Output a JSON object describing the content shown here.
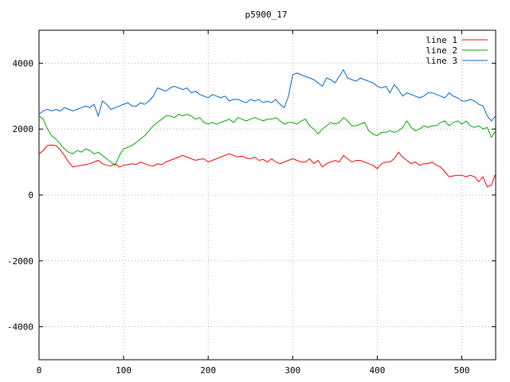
{
  "chart_data": {
    "type": "line",
    "title": "p5900_17",
    "xlabel": "",
    "ylabel": "",
    "xlim": [
      0,
      540
    ],
    "ylim": [
      -5000,
      5000
    ],
    "x_ticks": [
      0,
      100,
      200,
      300,
      400,
      500
    ],
    "y_ticks": [
      -4000,
      -2000,
      0,
      2000,
      4000
    ],
    "grid": true,
    "legend_position": "top-right",
    "series": [
      {
        "name": "line 1",
        "color": "#ff0000",
        "x": [
          0,
          5,
          10,
          15,
          20,
          25,
          30,
          35,
          40,
          45,
          50,
          55,
          60,
          65,
          70,
          75,
          80,
          85,
          90,
          95,
          100,
          105,
          110,
          115,
          120,
          125,
          130,
          135,
          140,
          145,
          150,
          155,
          160,
          165,
          170,
          175,
          180,
          185,
          190,
          195,
          200,
          205,
          210,
          215,
          220,
          225,
          230,
          235,
          240,
          245,
          250,
          255,
          260,
          265,
          270,
          275,
          280,
          285,
          290,
          295,
          300,
          305,
          310,
          315,
          320,
          325,
          330,
          335,
          340,
          345,
          350,
          355,
          360,
          365,
          370,
          375,
          380,
          385,
          390,
          395,
          400,
          405,
          410,
          415,
          420,
          425,
          430,
          435,
          440,
          445,
          450,
          455,
          460,
          465,
          470,
          475,
          480,
          485,
          490,
          495,
          500,
          505,
          510,
          515,
          520,
          525,
          530,
          535,
          540
        ],
        "y": [
          1250,
          1350,
          1500,
          1520,
          1500,
          1380,
          1200,
          1000,
          850,
          880,
          900,
          920,
          950,
          1000,
          1050,
          950,
          900,
          880,
          950,
          850,
          900,
          920,
          950,
          930,
          1000,
          950,
          900,
          880,
          950,
          920,
          1000,
          1050,
          1100,
          1150,
          1200,
          1150,
          1100,
          1050,
          1080,
          1100,
          1000,
          1050,
          1100,
          1150,
          1200,
          1250,
          1200,
          1150,
          1180,
          1120,
          1100,
          1150,
          1050,
          1080,
          1000,
          1100,
          1000,
          950,
          1000,
          1050,
          1100,
          1050,
          1000,
          1000,
          1100,
          950,
          1050,
          850,
          950,
          1000,
          1050,
          1000,
          1200,
          1100,
          1000,
          1050,
          1050,
          1000,
          950,
          900,
          800,
          950,
          1000,
          1000,
          1100,
          1300,
          1150,
          1050,
          950,
          1000,
          900,
          950,
          950,
          1000,
          900,
          850,
          700,
          550,
          580,
          600,
          600,
          550,
          600,
          550,
          400,
          550,
          250,
          300,
          650
        ]
      },
      {
        "name": "line 2",
        "color": "#00aa00",
        "x": [
          0,
          5,
          10,
          15,
          20,
          25,
          30,
          35,
          40,
          45,
          50,
          55,
          60,
          65,
          70,
          75,
          80,
          85,
          90,
          95,
          100,
          105,
          110,
          115,
          120,
          125,
          130,
          135,
          140,
          145,
          150,
          155,
          160,
          165,
          170,
          175,
          180,
          185,
          190,
          195,
          200,
          205,
          210,
          215,
          220,
          225,
          230,
          235,
          240,
          245,
          250,
          255,
          260,
          265,
          270,
          275,
          280,
          285,
          290,
          295,
          300,
          305,
          310,
          315,
          320,
          325,
          330,
          335,
          340,
          345,
          350,
          355,
          360,
          365,
          370,
          375,
          380,
          385,
          390,
          395,
          400,
          405,
          410,
          415,
          420,
          425,
          430,
          435,
          440,
          445,
          450,
          455,
          460,
          465,
          470,
          475,
          480,
          485,
          490,
          495,
          500,
          505,
          510,
          515,
          520,
          525,
          530,
          535,
          540
        ],
        "y": [
          2400,
          2300,
          2000,
          1800,
          1700,
          1550,
          1400,
          1300,
          1250,
          1350,
          1300,
          1400,
          1350,
          1250,
          1300,
          1200,
          1100,
          1000,
          900,
          1200,
          1400,
          1450,
          1500,
          1600,
          1700,
          1800,
          1950,
          2100,
          2200,
          2300,
          2400,
          2400,
          2350,
          2450,
          2400,
          2450,
          2400,
          2300,
          2350,
          2200,
          2150,
          2200,
          2150,
          2200,
          2250,
          2300,
          2200,
          2350,
          2300,
          2250,
          2300,
          2350,
          2300,
          2250,
          2300,
          2300,
          2350,
          2250,
          2150,
          2200,
          2200,
          2150,
          2250,
          2300,
          2100,
          2000,
          1850,
          2000,
          2100,
          2200,
          2150,
          2200,
          2350,
          2250,
          2100,
          2100,
          2150,
          2200,
          1950,
          1850,
          1800,
          1900,
          1900,
          1950,
          1900,
          1950,
          2050,
          2250,
          2050,
          1950,
          2000,
          2100,
          2050,
          2100,
          2100,
          2200,
          2250,
          2100,
          2200,
          2250,
          2150,
          2250,
          2100,
          2050,
          2100,
          2000,
          2050,
          1750,
          1950
        ]
      },
      {
        "name": "line 3",
        "color": "#0066cc",
        "x": [
          0,
          5,
          10,
          15,
          20,
          25,
          30,
          35,
          40,
          45,
          50,
          55,
          60,
          65,
          70,
          75,
          80,
          85,
          90,
          95,
          100,
          105,
          110,
          115,
          120,
          125,
          130,
          135,
          140,
          145,
          150,
          155,
          160,
          165,
          170,
          175,
          180,
          185,
          190,
          195,
          200,
          205,
          210,
          215,
          220,
          225,
          230,
          235,
          240,
          245,
          250,
          255,
          260,
          265,
          270,
          275,
          280,
          285,
          290,
          295,
          300,
          305,
          310,
          315,
          320,
          325,
          330,
          335,
          340,
          345,
          350,
          355,
          360,
          365,
          370,
          375,
          380,
          385,
          390,
          395,
          400,
          405,
          410,
          415,
          420,
          425,
          430,
          435,
          440,
          445,
          450,
          455,
          460,
          465,
          470,
          475,
          480,
          485,
          490,
          495,
          500,
          505,
          510,
          515,
          520,
          525,
          530,
          535,
          540
        ],
        "y": [
          2450,
          2550,
          2600,
          2550,
          2600,
          2550,
          2650,
          2600,
          2550,
          2600,
          2650,
          2700,
          2650,
          2750,
          2400,
          2850,
          2750,
          2600,
          2650,
          2700,
          2750,
          2800,
          2700,
          2700,
          2800,
          2750,
          2850,
          3000,
          3250,
          3200,
          3150,
          3250,
          3300,
          3250,
          3200,
          3250,
          3100,
          3150,
          3050,
          3000,
          2950,
          3050,
          3000,
          2950,
          3000,
          2850,
          2900,
          2900,
          2850,
          2800,
          2900,
          2850,
          2900,
          2800,
          2850,
          2800,
          2900,
          2750,
          2650,
          3000,
          3650,
          3700,
          3650,
          3600,
          3550,
          3500,
          3400,
          3300,
          3550,
          3500,
          3400,
          3600,
          3800,
          3550,
          3500,
          3450,
          3550,
          3500,
          3450,
          3400,
          3300,
          3250,
          3300,
          3100,
          3350,
          3200,
          3000,
          3100,
          3050,
          3000,
          2950,
          3000,
          3100,
          3100,
          3050,
          3000,
          2950,
          3100,
          3000,
          2950,
          2850,
          2850,
          2900,
          2850,
          2750,
          2700,
          2400,
          2250,
          2400
        ]
      }
    ]
  }
}
